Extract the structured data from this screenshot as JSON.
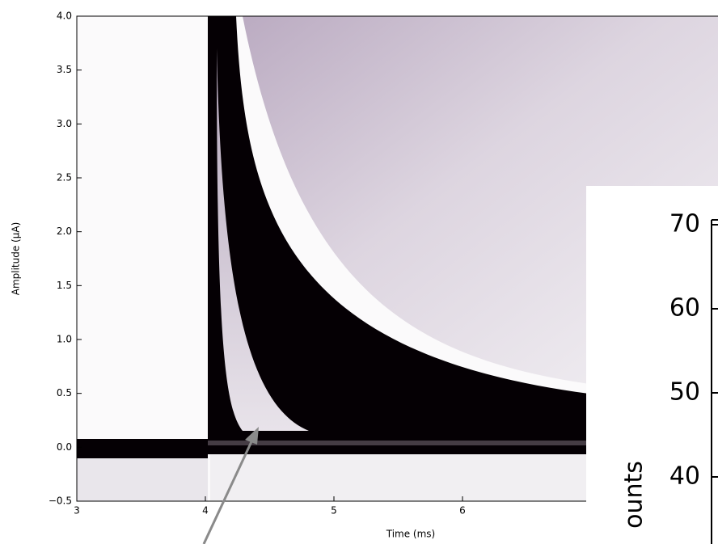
{
  "chart_data": [
    {
      "type": "density",
      "xlabel": "Time (ms)",
      "ylabel": "Amplitude (μA)",
      "xlim": [
        3,
        8
      ],
      "xticks": [
        3,
        4,
        5,
        6
      ],
      "ylim": [
        -0.5,
        4.0
      ],
      "yticks": [
        {
          "value": -0.5,
          "label": "−0.5"
        },
        {
          "value": 0,
          "label": "0.0"
        },
        0.5,
        {
          "value": 1,
          "label": "1.0"
        },
        1.5,
        {
          "value": 2,
          "label": "2.0"
        },
        2.5,
        {
          "value": 3,
          "label": "3.0"
        },
        3.5,
        {
          "value": 4,
          "label": "4.0"
        }
      ]
    },
    {
      "type": "histogram",
      "ylabel": "ounts",
      "ylim": [
        32,
        71
      ],
      "yticks": [
        40,
        50,
        60,
        70
      ]
    }
  ]
}
